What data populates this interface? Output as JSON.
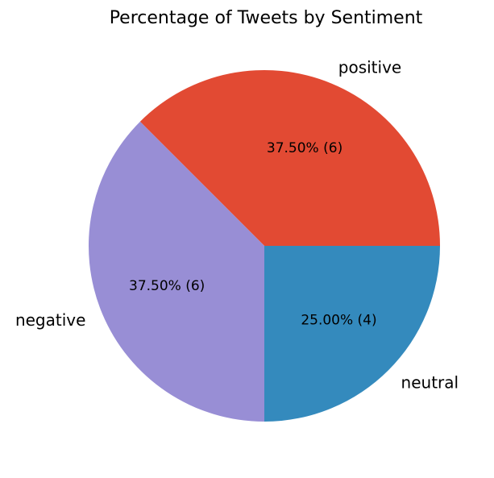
{
  "chart_data": {
    "type": "pie",
    "title": "Percentage of Tweets by Sentiment",
    "slices": [
      {
        "label": "positive",
        "value": 6,
        "percent_label": "37.50%  (6)",
        "color": "#E24A33"
      },
      {
        "label": "negative",
        "value": 6,
        "percent_label": "37.50%  (6)",
        "color": "#988ED5"
      },
      {
        "label": "neutral",
        "value": 4,
        "percent_label": "25.00%  (4)",
        "color": "#348ABD"
      }
    ],
    "legend": "none",
    "grid": false
  }
}
